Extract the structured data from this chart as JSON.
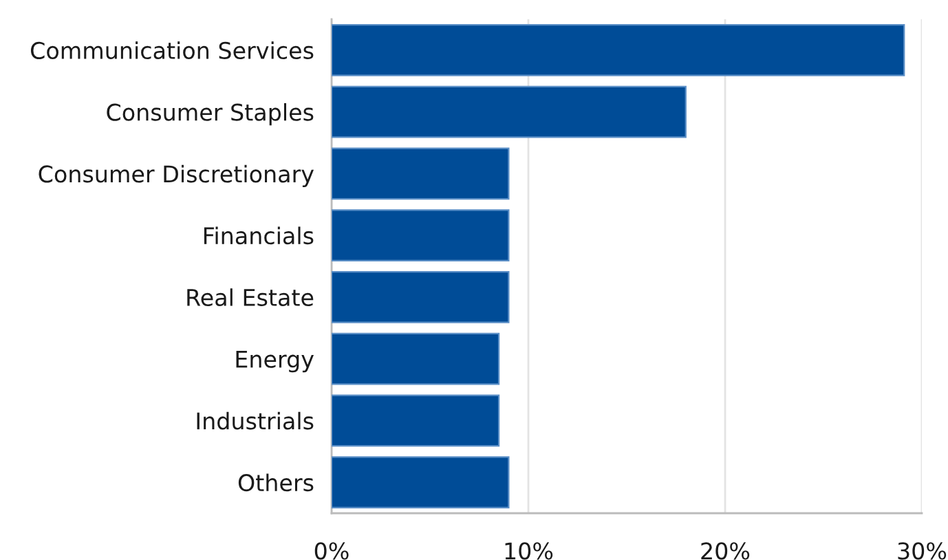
{
  "chart_data": {
    "type": "bar",
    "orientation": "horizontal",
    "categories": [
      "Communication Services",
      "Consumer Staples",
      "Consumer Discretionary",
      "Financials",
      "Real Estate",
      "Energy",
      "Industrials",
      "Others"
    ],
    "values": [
      29.1,
      18.0,
      9.0,
      9.0,
      9.0,
      8.5,
      8.5,
      9.0
    ],
    "color": "#004c97",
    "xlim": [
      0,
      30
    ],
    "xticks": [
      {
        "value": 0,
        "label": "0%"
      },
      {
        "value": 10,
        "label": "10%"
      },
      {
        "value": 20,
        "label": "20%"
      },
      {
        "value": 30,
        "label": "30%"
      }
    ],
    "grid": "x",
    "legend": false
  }
}
